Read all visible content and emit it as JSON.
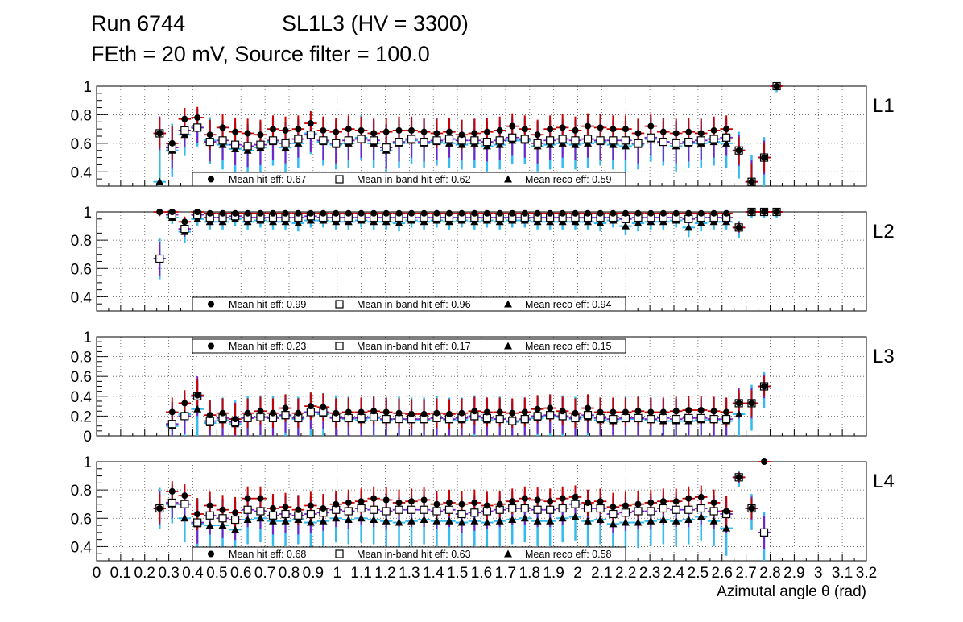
{
  "header": {
    "run": "Run 6744",
    "chamber": "SL1L3 (HV = 3300)",
    "settings": "FEth = 20 mV, Source filter = 100.0"
  },
  "colors": {
    "hit": "#000000",
    "hit_err": "#cc0000",
    "inband": "#000000",
    "inband_err": "#7a1fc9",
    "reco": "#000000",
    "reco_err": "#33bbee",
    "grid": "#555555"
  },
  "chart_data": [
    {
      "type": "scatter",
      "panel": "L1",
      "ylim": [
        0.3,
        1.0
      ],
      "yticks": [
        "0.4",
        "0.6",
        "0.8",
        "1"
      ],
      "legend": {
        "position": "bottom",
        "hit": "Mean hit  eff: 0.67",
        "inband": "Mean in-band hit eff: 0.62",
        "reco": "Mean reco eff: 0.59"
      },
      "x": [
        0.262,
        0.314,
        0.366,
        0.419,
        0.471,
        0.524,
        0.576,
        0.628,
        0.681,
        0.733,
        0.785,
        0.838,
        0.89,
        0.942,
        0.995,
        1.047,
        1.1,
        1.152,
        1.204,
        1.257,
        1.309,
        1.361,
        1.414,
        1.466,
        1.518,
        1.571,
        1.623,
        1.676,
        1.728,
        1.78,
        1.833,
        1.885,
        1.937,
        1.99,
        2.042,
        2.094,
        2.147,
        2.199,
        2.251,
        2.304,
        2.356,
        2.409,
        2.461,
        2.513,
        2.566,
        2.618,
        2.67,
        2.723,
        2.775,
        2.827
      ],
      "hit": [
        0.67,
        0.6,
        0.77,
        0.78,
        0.66,
        0.71,
        0.68,
        0.67,
        0.66,
        0.7,
        0.69,
        0.7,
        0.74,
        0.69,
        0.68,
        0.7,
        0.69,
        0.67,
        0.68,
        0.69,
        0.69,
        0.68,
        0.67,
        0.68,
        0.66,
        0.67,
        0.68,
        0.69,
        0.72,
        0.7,
        0.66,
        0.7,
        0.71,
        0.69,
        0.72,
        0.71,
        0.7,
        0.7,
        0.67,
        0.72,
        0.68,
        0.67,
        0.68,
        0.67,
        0.69,
        0.7,
        0.55,
        0.33,
        0.5,
        1.0
      ],
      "inband": [
        0.67,
        0.57,
        0.69,
        0.71,
        0.61,
        0.62,
        0.59,
        0.58,
        0.59,
        0.62,
        0.6,
        0.63,
        0.66,
        0.62,
        0.6,
        0.62,
        0.63,
        0.62,
        0.57,
        0.61,
        0.63,
        0.61,
        0.62,
        0.63,
        0.62,
        0.62,
        0.61,
        0.62,
        0.64,
        0.63,
        0.6,
        0.62,
        0.63,
        0.62,
        0.63,
        0.62,
        0.62,
        0.62,
        0.6,
        0.64,
        0.61,
        0.6,
        0.61,
        0.62,
        0.63,
        0.64,
        0.55,
        0.33,
        0.5,
        1.0
      ],
      "reco": [
        0.33,
        0.55,
        0.66,
        0.71,
        0.62,
        0.59,
        0.56,
        0.55,
        0.57,
        0.61,
        0.57,
        0.6,
        0.67,
        0.61,
        0.59,
        0.6,
        0.64,
        0.6,
        0.55,
        0.6,
        0.62,
        0.6,
        0.61,
        0.6,
        0.59,
        0.6,
        0.58,
        0.59,
        0.62,
        0.62,
        0.58,
        0.59,
        0.6,
        0.59,
        0.6,
        0.61,
        0.59,
        0.58,
        0.59,
        0.63,
        0.61,
        0.58,
        0.6,
        0.6,
        0.61,
        0.6,
        0.55,
        0.33,
        0.5,
        1.0
      ]
    },
    {
      "type": "scatter",
      "panel": "L2",
      "ylim": [
        0.3,
        1.0
      ],
      "yticks": [
        "0.4",
        "0.6",
        "0.8",
        "1"
      ],
      "legend": {
        "position": "bottom",
        "hit": "Mean hit  eff: 0.99",
        "inband": "Mean in-band hit eff: 0.96",
        "reco": "Mean reco eff: 0.94"
      },
      "x": [
        0.262,
        0.314,
        0.366,
        0.419,
        0.471,
        0.524,
        0.576,
        0.628,
        0.681,
        0.733,
        0.785,
        0.838,
        0.89,
        0.942,
        0.995,
        1.047,
        1.1,
        1.152,
        1.204,
        1.257,
        1.309,
        1.361,
        1.414,
        1.466,
        1.518,
        1.571,
        1.623,
        1.676,
        1.728,
        1.78,
        1.833,
        1.885,
        1.937,
        1.99,
        2.042,
        2.094,
        2.147,
        2.199,
        2.251,
        2.304,
        2.356,
        2.409,
        2.461,
        2.513,
        2.566,
        2.618,
        2.67,
        2.723,
        2.775,
        2.827
      ],
      "hit": [
        1.0,
        1.0,
        0.93,
        1.0,
        0.99,
        0.99,
        0.99,
        0.99,
        0.99,
        0.99,
        0.99,
        0.99,
        0.99,
        0.99,
        0.99,
        0.99,
        0.99,
        0.99,
        0.99,
        0.99,
        0.99,
        0.99,
        0.99,
        0.99,
        0.99,
        0.99,
        0.99,
        0.99,
        0.99,
        0.99,
        0.99,
        0.99,
        0.99,
        0.99,
        0.99,
        0.99,
        0.99,
        0.99,
        0.99,
        0.99,
        0.99,
        0.99,
        0.99,
        0.99,
        0.99,
        0.99,
        0.89,
        1.0,
        1.0,
        1.0
      ],
      "inband": [
        0.67,
        0.98,
        0.88,
        0.98,
        0.96,
        0.96,
        0.97,
        0.96,
        0.96,
        0.96,
        0.96,
        0.96,
        0.97,
        0.96,
        0.96,
        0.96,
        0.96,
        0.96,
        0.96,
        0.96,
        0.96,
        0.96,
        0.96,
        0.96,
        0.96,
        0.96,
        0.96,
        0.96,
        0.96,
        0.96,
        0.96,
        0.96,
        0.96,
        0.96,
        0.96,
        0.96,
        0.96,
        0.95,
        0.96,
        0.96,
        0.96,
        0.96,
        0.95,
        0.96,
        0.96,
        0.96,
        0.89,
        1.0,
        1.0,
        1.0
      ],
      "reco": [
        0.67,
        0.96,
        0.86,
        0.95,
        0.93,
        0.93,
        0.95,
        0.93,
        0.94,
        0.93,
        0.93,
        0.92,
        0.94,
        0.94,
        0.93,
        0.93,
        0.94,
        0.93,
        0.93,
        0.92,
        0.94,
        0.93,
        0.94,
        0.93,
        0.94,
        0.93,
        0.94,
        0.93,
        0.94,
        0.94,
        0.93,
        0.93,
        0.93,
        0.93,
        0.93,
        0.92,
        0.94,
        0.9,
        0.92,
        0.93,
        0.93,
        0.94,
        0.89,
        0.92,
        0.93,
        0.93,
        0.89,
        1.0,
        1.0,
        1.0
      ]
    },
    {
      "type": "scatter",
      "panel": "L3",
      "ylim": [
        0.0,
        1.0
      ],
      "yticks": [
        "0",
        "0.2",
        "0.4",
        "0.6",
        "0.8",
        "1"
      ],
      "legend": {
        "position": "top",
        "hit": "Mean hit  eff: 0.23",
        "inband": "Mean in-band hit eff: 0.17",
        "reco": "Mean reco eff: 0.15"
      },
      "x": [
        0.314,
        0.366,
        0.419,
        0.471,
        0.524,
        0.576,
        0.628,
        0.681,
        0.733,
        0.785,
        0.838,
        0.89,
        0.942,
        0.995,
        1.047,
        1.1,
        1.152,
        1.204,
        1.257,
        1.309,
        1.361,
        1.414,
        1.466,
        1.518,
        1.571,
        1.623,
        1.676,
        1.728,
        1.78,
        1.833,
        1.885,
        1.937,
        1.99,
        2.042,
        2.094,
        2.147,
        2.199,
        2.251,
        2.304,
        2.356,
        2.409,
        2.461,
        2.513,
        2.566,
        2.618,
        2.67,
        2.723,
        2.775
      ],
      "hit": [
        0.24,
        0.33,
        0.41,
        0.21,
        0.23,
        0.17,
        0.23,
        0.25,
        0.23,
        0.28,
        0.23,
        0.3,
        0.29,
        0.23,
        0.24,
        0.24,
        0.25,
        0.24,
        0.23,
        0.22,
        0.22,
        0.23,
        0.22,
        0.23,
        0.25,
        0.24,
        0.24,
        0.23,
        0.24,
        0.27,
        0.28,
        0.25,
        0.23,
        0.28,
        0.24,
        0.24,
        0.24,
        0.25,
        0.24,
        0.24,
        0.25,
        0.26,
        0.26,
        0.25,
        0.24,
        0.33,
        0.33,
        0.5
      ],
      "inband": [
        0.12,
        0.2,
        0.4,
        0.15,
        0.18,
        0.14,
        0.18,
        0.19,
        0.18,
        0.21,
        0.18,
        0.24,
        0.24,
        0.18,
        0.18,
        0.18,
        0.19,
        0.17,
        0.17,
        0.17,
        0.17,
        0.18,
        0.17,
        0.18,
        0.2,
        0.18,
        0.17,
        0.15,
        0.17,
        0.2,
        0.21,
        0.2,
        0.18,
        0.21,
        0.18,
        0.17,
        0.18,
        0.18,
        0.17,
        0.18,
        0.17,
        0.18,
        0.18,
        0.17,
        0.17,
        0.33,
        0.33,
        0.5
      ],
      "reco": [
        0.1,
        0.22,
        0.27,
        0.13,
        0.16,
        0.12,
        0.18,
        0.19,
        0.18,
        0.2,
        0.17,
        0.24,
        0.22,
        0.19,
        0.17,
        0.16,
        0.18,
        0.16,
        0.17,
        0.16,
        0.16,
        0.18,
        0.16,
        0.16,
        0.19,
        0.16,
        0.17,
        0.14,
        0.16,
        0.18,
        0.2,
        0.19,
        0.17,
        0.19,
        0.16,
        0.15,
        0.17,
        0.17,
        0.16,
        0.15,
        0.15,
        0.15,
        0.16,
        0.16,
        0.15,
        0.22,
        0.33,
        0.5
      ]
    },
    {
      "type": "scatter",
      "panel": "L4",
      "ylim": [
        0.3,
        1.0
      ],
      "yticks": [
        "0.4",
        "0.6",
        "0.8",
        "1"
      ],
      "xlabel": "Azimutal angle θ (rad)",
      "xticks": [
        "0",
        "0.1",
        "0.2",
        "0.3",
        "0.4",
        "0.5",
        "0.6",
        "0.7",
        "0.8",
        "0.9",
        "1",
        "1.1",
        "1.2",
        "1.3",
        "1.4",
        "1.5",
        "1.6",
        "1.7",
        "1.8",
        "1.9",
        "2",
        "2.1",
        "2.2",
        "2.3",
        "2.4",
        "2.5",
        "2.6",
        "2.7",
        "2.8",
        "2.9",
        "3",
        "3.1",
        "3.2"
      ],
      "legend": {
        "position": "bottom",
        "hit": "Mean hit  eff: 0.68",
        "inband": "Mean in-band hit eff: 0.63",
        "reco": "Mean reco eff: 0.58"
      },
      "x": [
        0.262,
        0.314,
        0.366,
        0.419,
        0.471,
        0.524,
        0.576,
        0.628,
        0.681,
        0.733,
        0.785,
        0.838,
        0.89,
        0.942,
        0.995,
        1.047,
        1.1,
        1.152,
        1.204,
        1.257,
        1.309,
        1.361,
        1.414,
        1.466,
        1.518,
        1.571,
        1.623,
        1.676,
        1.728,
        1.78,
        1.833,
        1.885,
        1.937,
        1.99,
        2.042,
        2.094,
        2.147,
        2.199,
        2.251,
        2.304,
        2.356,
        2.409,
        2.461,
        2.513,
        2.566,
        2.618,
        2.67,
        2.723,
        2.775
      ],
      "hit": [
        0.67,
        0.79,
        0.76,
        0.63,
        0.69,
        0.66,
        0.64,
        0.74,
        0.74,
        0.67,
        0.68,
        0.66,
        0.69,
        0.67,
        0.7,
        0.71,
        0.72,
        0.74,
        0.73,
        0.71,
        0.72,
        0.73,
        0.7,
        0.71,
        0.7,
        0.71,
        0.69,
        0.7,
        0.72,
        0.74,
        0.73,
        0.72,
        0.74,
        0.75,
        0.71,
        0.72,
        0.68,
        0.69,
        0.7,
        0.71,
        0.72,
        0.72,
        0.74,
        0.75,
        0.71,
        0.65,
        0.89,
        0.67,
        1.0
      ],
      "inband": [
        0.67,
        0.71,
        0.7,
        0.57,
        0.62,
        0.6,
        0.59,
        0.66,
        0.65,
        0.62,
        0.63,
        0.62,
        0.63,
        0.64,
        0.66,
        0.65,
        0.67,
        0.66,
        0.65,
        0.66,
        0.66,
        0.66,
        0.65,
        0.66,
        0.63,
        0.64,
        0.65,
        0.66,
        0.67,
        0.67,
        0.66,
        0.66,
        0.67,
        0.7,
        0.67,
        0.67,
        0.63,
        0.64,
        0.65,
        0.65,
        0.67,
        0.66,
        0.66,
        0.67,
        0.65,
        0.63,
        0.89,
        0.67,
        0.5
      ],
      "reco": [
        0.67,
        0.7,
        0.6,
        0.56,
        0.55,
        0.55,
        0.52,
        0.59,
        0.6,
        0.58,
        0.58,
        0.59,
        0.57,
        0.58,
        0.6,
        0.59,
        0.6,
        0.59,
        0.58,
        0.57,
        0.58,
        0.59,
        0.58,
        0.58,
        0.57,
        0.58,
        0.57,
        0.58,
        0.59,
        0.6,
        0.58,
        0.58,
        0.6,
        0.61,
        0.58,
        0.59,
        0.56,
        0.57,
        0.57,
        0.58,
        0.59,
        0.58,
        0.59,
        0.61,
        0.58,
        0.53,
        0.89,
        0.67,
        0.5
      ]
    }
  ],
  "panel_labels": [
    "L1",
    "L2",
    "L3",
    "L4"
  ]
}
